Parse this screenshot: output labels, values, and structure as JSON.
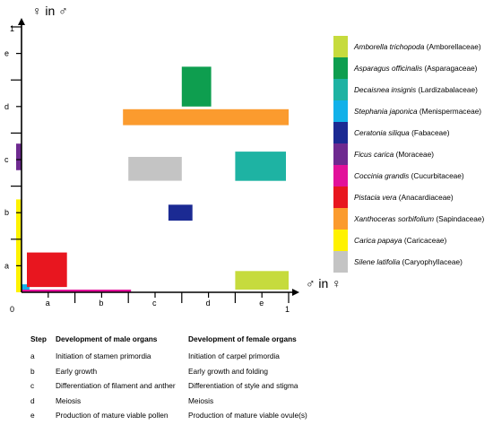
{
  "chart_data": {
    "type": "range-rectangles",
    "x_axis_label": "♂ in ♀",
    "y_axis_label": "♀ in ♂",
    "axis_min_label": "0",
    "x_axis_max_label": "1",
    "y_axis_max_label": "1",
    "x_stage_labels": [
      "a",
      "b",
      "c",
      "d",
      "e"
    ],
    "y_stage_labels": [
      "a",
      "b",
      "c",
      "d",
      "e"
    ],
    "stage_scale": "each axis runs 0 to 1 through stages a–e; each stage spans 0.2",
    "species": [
      {
        "name": "Amborella trichopoda",
        "family": "(Amborellaceae)",
        "color": "#c6db3d",
        "male": [
          0.8,
          1.0
        ],
        "female": [
          0.01,
          0.08
        ]
      },
      {
        "name": "Asparagus officinalis",
        "family": "(Asparagaceae)",
        "color": "#0e9e4f",
        "male": [
          0.6,
          0.71
        ],
        "female": [
          0.7,
          0.85
        ]
      },
      {
        "name": "Decaisnea insignis",
        "family": "(Lardizabalaceae)",
        "color": "#1eb3a3",
        "male": [
          0.8,
          0.99
        ],
        "female": [
          0.42,
          0.53
        ]
      },
      {
        "name": "Stephania japonica",
        "family": "(Menispermaceae)",
        "color": "#12b1e9",
        "male": [
          0.0,
          0.03
        ],
        "female": [
          0.0,
          0.03
        ]
      },
      {
        "name": "Ceratonia siliqua",
        "family": "(Fabaceae)",
        "color": "#1b2a93",
        "male": [
          0.55,
          0.64
        ],
        "female": [
          0.27,
          0.33
        ]
      },
      {
        "name": "Ficus carica",
        "family": "(Moraceae)",
        "color": "#6e2a90",
        "male": [
          -0.02,
          0.0
        ],
        "female": [
          0.46,
          0.56
        ]
      },
      {
        "name": "Coccinia grandis",
        "family": "(Cucurbitaceae)",
        "color": "#e2119a",
        "male": [
          0.0,
          0.41
        ],
        "female": [
          0.0,
          0.01
        ]
      },
      {
        "name": "Pistacia vera",
        "family": "(Anacardiaceae)",
        "color": "#e8161f",
        "male": [
          0.02,
          0.17
        ],
        "female": [
          0.02,
          0.15
        ]
      },
      {
        "name": "Xanthoceras sorbifolium",
        "family": "(Sapindaceae)",
        "color": "#fb9b2e",
        "male": [
          0.38,
          1.0
        ],
        "female": [
          0.63,
          0.69
        ]
      },
      {
        "name": "Carica papaya",
        "family": "(Caricaceae)",
        "color": "#fff200",
        "male": [
          -0.02,
          0.0
        ],
        "female": [
          0.0,
          0.35
        ]
      },
      {
        "name": "Silene latifolia",
        "family": "(Caryophyllaceae)",
        "color": "#c4c4c4",
        "male": [
          0.4,
          0.6
        ],
        "female": [
          0.42,
          0.51
        ]
      }
    ]
  },
  "steps_table": {
    "headers": {
      "step": "Step",
      "male": "Development of male organs",
      "female": "Development of female organs"
    },
    "rows": [
      {
        "step": "a",
        "male": "Initiation of stamen primordia",
        "female": "Initiation of carpel primordia"
      },
      {
        "step": "b",
        "male": "Early growth",
        "female": "Early growth and folding"
      },
      {
        "step": "c",
        "male": "Differentiation of filament and anther",
        "female": "Differentiation of style and stigma"
      },
      {
        "step": "d",
        "male": "Meiosis",
        "female": "Meiosis"
      },
      {
        "step": "e",
        "male": "Production of mature viable pollen",
        "female": "Production of mature viable ovule(s)"
      }
    ]
  }
}
